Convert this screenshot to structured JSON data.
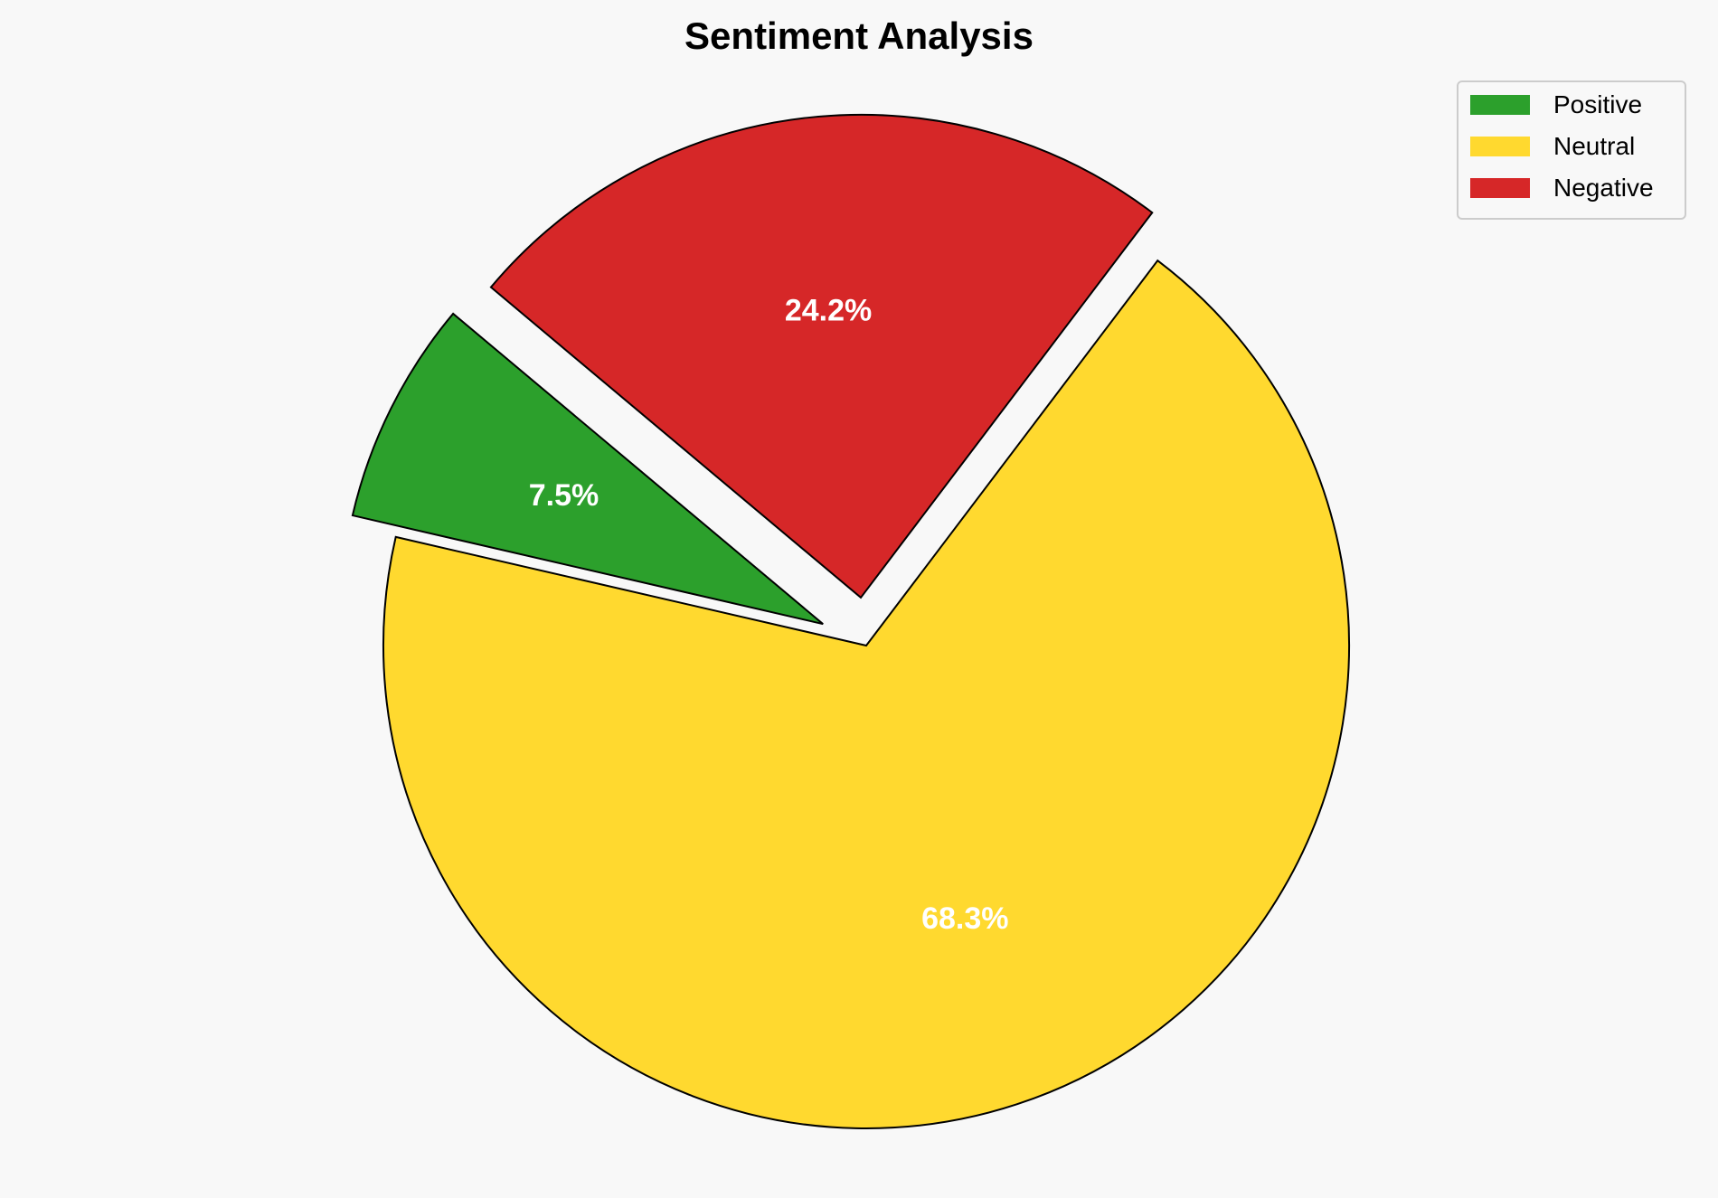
{
  "chart_data": {
    "type": "pie",
    "title": "Sentiment Analysis",
    "categories": [
      "Positive",
      "Neutral",
      "Negative"
    ],
    "values": [
      7.5,
      68.3,
      24.2
    ],
    "labels": [
      "7.5%",
      "68.3%",
      "24.2%"
    ],
    "colors": [
      "#2ca02c",
      "#ffd92f",
      "#d62728"
    ],
    "explode": [
      0.1,
      0,
      0.1
    ],
    "start_angle": 140,
    "direction": "counterclockwise",
    "legend_placement": "top-right",
    "edge_color": "#000000",
    "label_color": "#ffffff",
    "background": "#f8f8f8"
  }
}
